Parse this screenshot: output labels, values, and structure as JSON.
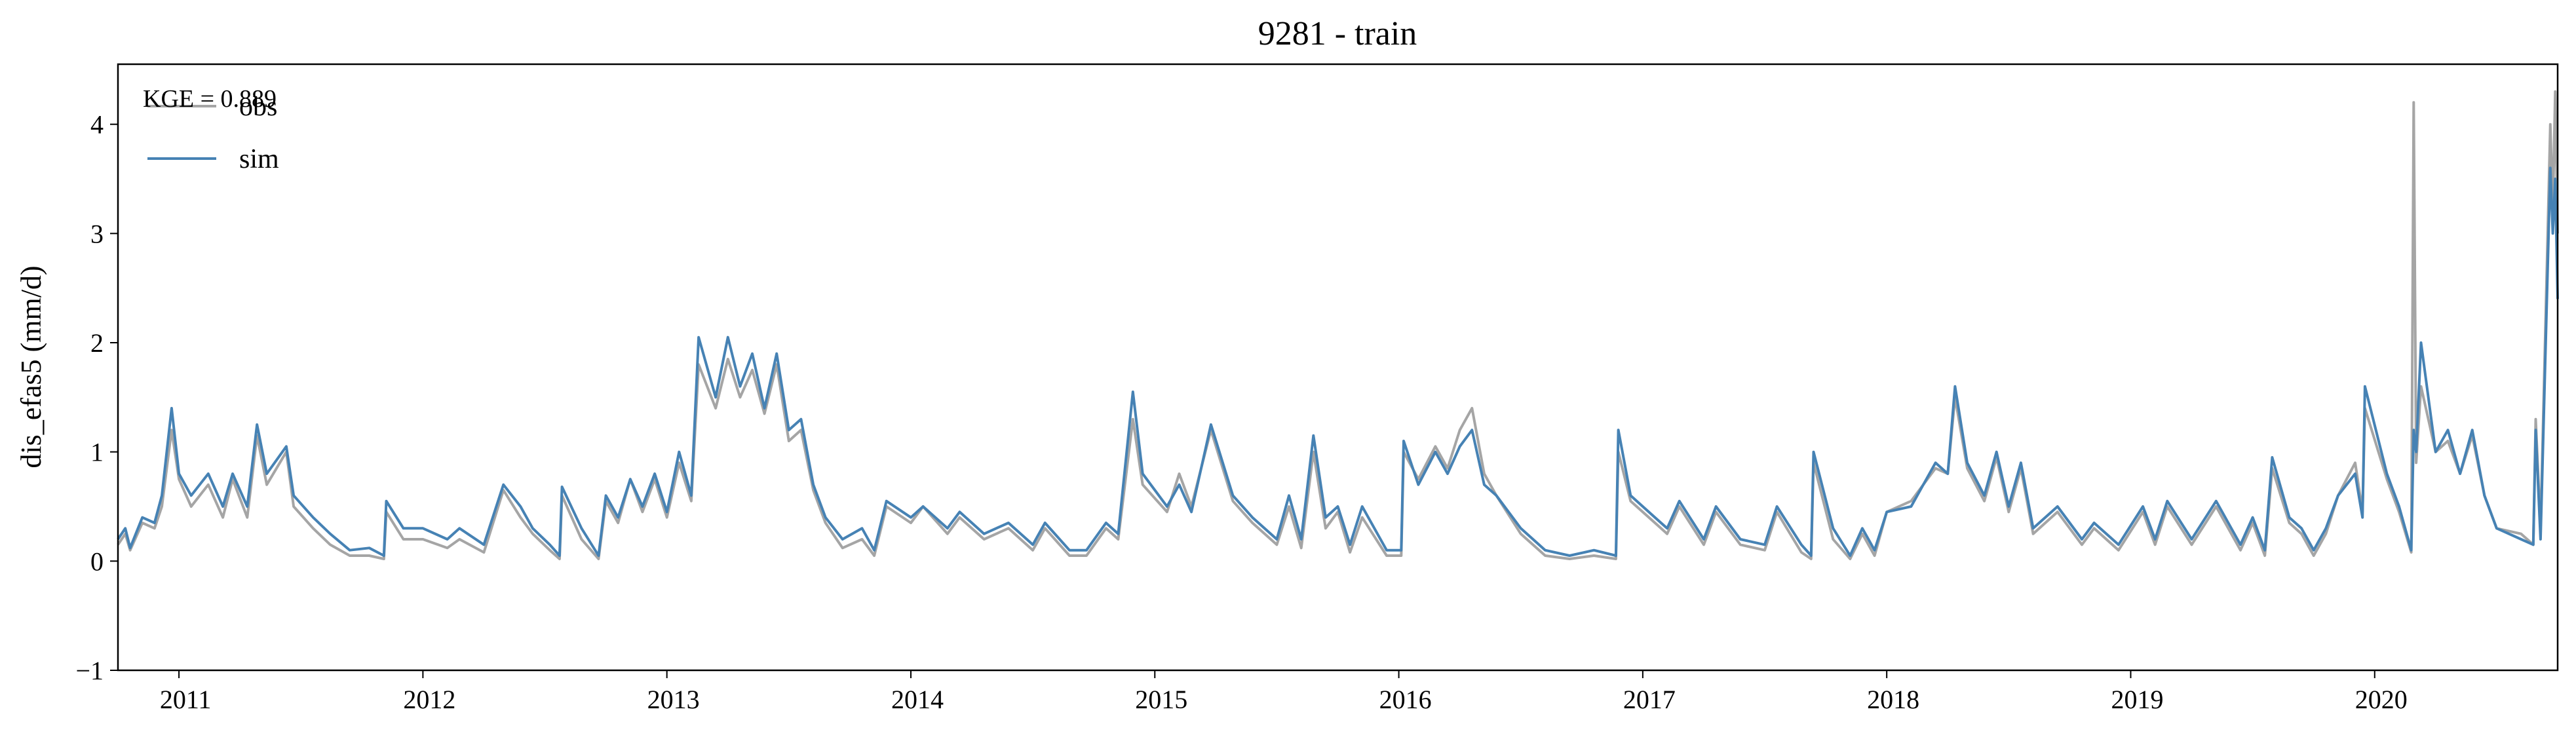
{
  "chart_data": {
    "type": "line",
    "title": "9281 - train",
    "y_label": "dis_efas5 (mm/d)",
    "annotation": "KGE = 0.889",
    "legend": "upper left",
    "xlim": [
      2010.75,
      2020.75
    ],
    "xticks": [
      2011,
      2012,
      2013,
      2014,
      2015,
      2016,
      2017,
      2018,
      2019,
      2020
    ],
    "ylim": [
      -1,
      4.55
    ],
    "yticks": [
      {
        "value": -1,
        "label": "−1"
      },
      0,
      1,
      2,
      3,
      4
    ],
    "x": [
      2010.75,
      2010.78,
      2010.8,
      2010.85,
      2010.9,
      2010.93,
      2010.97,
      2011.0,
      2011.05,
      2011.12,
      2011.18,
      2011.22,
      2011.28,
      2011.32,
      2011.36,
      2011.44,
      2011.47,
      2011.55,
      2011.62,
      2011.7,
      2011.78,
      2011.84,
      2011.85,
      2011.92,
      2012.0,
      2012.1,
      2012.15,
      2012.25,
      2012.33,
      2012.4,
      2012.45,
      2012.52,
      2012.56,
      2012.57,
      2012.65,
      2012.72,
      2012.75,
      2012.8,
      2012.85,
      2012.9,
      2012.95,
      2013.0,
      2013.05,
      2013.1,
      2013.13,
      2013.2,
      2013.25,
      2013.3,
      2013.35,
      2013.4,
      2013.45,
      2013.5,
      2013.55,
      2013.6,
      2013.65,
      2013.72,
      2013.8,
      2013.85,
      2013.9,
      2014.0,
      2014.05,
      2014.15,
      2014.2,
      2014.3,
      2014.4,
      2014.5,
      2014.55,
      2014.65,
      2014.72,
      2014.8,
      2014.85,
      2014.91,
      2014.95,
      2015.05,
      2015.1,
      2015.15,
      2015.23,
      2015.32,
      2015.4,
      2015.5,
      2015.55,
      2015.6,
      2015.65,
      2015.7,
      2015.75,
      2015.8,
      2015.85,
      2015.95,
      2016.01,
      2016.02,
      2016.08,
      2016.15,
      2016.2,
      2016.25,
      2016.3,
      2016.35,
      2016.4,
      2016.5,
      2016.6,
      2016.7,
      2016.8,
      2016.89,
      2016.9,
      2016.95,
      2017.05,
      2017.1,
      2017.15,
      2017.25,
      2017.3,
      2017.4,
      2017.5,
      2017.55,
      2017.65,
      2017.69,
      2017.7,
      2017.78,
      2017.85,
      2017.9,
      2017.95,
      2018.0,
      2018.1,
      2018.2,
      2018.25,
      2018.28,
      2018.33,
      2018.4,
      2018.45,
      2018.5,
      2018.55,
      2018.6,
      2018.7,
      2018.8,
      2018.85,
      2018.95,
      2019.05,
      2019.1,
      2019.15,
      2019.25,
      2019.35,
      2019.45,
      2019.5,
      2019.55,
      2019.58,
      2019.65,
      2019.7,
      2019.75,
      2019.8,
      2019.85,
      2019.92,
      2019.95,
      2019.96,
      2020.05,
      2020.1,
      2020.15,
      2020.16,
      2020.17,
      2020.19,
      2020.25,
      2020.3,
      2020.35,
      2020.4,
      2020.45,
      2020.5,
      2020.6,
      2020.65,
      2020.66,
      2020.68,
      2020.72,
      2020.73,
      2020.74,
      2020.75
    ],
    "series": [
      {
        "name": "obs",
        "color": "#a5a5a5",
        "values": [
          0.15,
          0.25,
          0.1,
          0.35,
          0.3,
          0.5,
          1.2,
          0.75,
          0.5,
          0.7,
          0.4,
          0.75,
          0.4,
          1.15,
          0.7,
          1.0,
          0.5,
          0.3,
          0.15,
          0.05,
          0.05,
          0.02,
          0.45,
          0.2,
          0.2,
          0.12,
          0.2,
          0.08,
          0.65,
          0.4,
          0.25,
          0.1,
          0.02,
          0.6,
          0.2,
          0.02,
          0.55,
          0.35,
          0.75,
          0.45,
          0.75,
          0.4,
          0.9,
          0.55,
          1.8,
          1.4,
          1.85,
          1.5,
          1.75,
          1.35,
          1.8,
          1.1,
          1.2,
          0.65,
          0.35,
          0.12,
          0.2,
          0.05,
          0.5,
          0.35,
          0.5,
          0.25,
          0.4,
          0.2,
          0.3,
          0.1,
          0.3,
          0.05,
          0.05,
          0.3,
          0.2,
          1.3,
          0.7,
          0.45,
          0.8,
          0.5,
          1.2,
          0.55,
          0.35,
          0.15,
          0.5,
          0.12,
          1.0,
          0.3,
          0.45,
          0.08,
          0.4,
          0.05,
          0.05,
          1.0,
          0.75,
          1.05,
          0.85,
          1.2,
          1.4,
          0.8,
          0.6,
          0.25,
          0.05,
          0.02,
          0.05,
          0.02,
          1.0,
          0.55,
          0.35,
          0.25,
          0.5,
          0.15,
          0.45,
          0.15,
          0.1,
          0.45,
          0.08,
          0.02,
          0.9,
          0.2,
          0.02,
          0.25,
          0.05,
          0.45,
          0.55,
          0.85,
          0.8,
          1.5,
          0.85,
          0.55,
          0.95,
          0.45,
          0.85,
          0.25,
          0.45,
          0.15,
          0.3,
          0.1,
          0.45,
          0.15,
          0.5,
          0.15,
          0.5,
          0.1,
          0.35,
          0.05,
          0.85,
          0.35,
          0.25,
          0.05,
          0.25,
          0.6,
          0.9,
          0.45,
          1.4,
          0.75,
          0.45,
          0.08,
          4.2,
          0.9,
          1.6,
          1.0,
          1.1,
          0.8,
          1.15,
          0.6,
          0.3,
          0.25,
          0.15,
          1.3,
          0.3,
          4.0,
          3.2,
          4.3,
          3.0
        ]
      },
      {
        "name": "sim",
        "color": "#4682b4",
        "values": [
          0.2,
          0.3,
          0.12,
          0.4,
          0.35,
          0.6,
          1.4,
          0.8,
          0.6,
          0.8,
          0.5,
          0.8,
          0.5,
          1.25,
          0.8,
          1.05,
          0.6,
          0.4,
          0.25,
          0.1,
          0.12,
          0.05,
          0.55,
          0.3,
          0.3,
          0.2,
          0.3,
          0.15,
          0.7,
          0.5,
          0.3,
          0.15,
          0.05,
          0.68,
          0.3,
          0.05,
          0.6,
          0.4,
          0.75,
          0.5,
          0.8,
          0.45,
          1.0,
          0.6,
          2.05,
          1.5,
          2.05,
          1.6,
          1.9,
          1.4,
          1.9,
          1.2,
          1.3,
          0.7,
          0.4,
          0.2,
          0.3,
          0.1,
          0.55,
          0.4,
          0.5,
          0.3,
          0.45,
          0.25,
          0.35,
          0.15,
          0.35,
          0.1,
          0.1,
          0.35,
          0.25,
          1.55,
          0.8,
          0.5,
          0.7,
          0.45,
          1.25,
          0.6,
          0.4,
          0.2,
          0.6,
          0.2,
          1.15,
          0.4,
          0.5,
          0.15,
          0.5,
          0.1,
          0.1,
          1.1,
          0.7,
          1.0,
          0.8,
          1.05,
          1.2,
          0.7,
          0.6,
          0.3,
          0.1,
          0.05,
          0.1,
          0.05,
          1.2,
          0.6,
          0.4,
          0.3,
          0.55,
          0.2,
          0.5,
          0.2,
          0.15,
          0.5,
          0.15,
          0.05,
          1.0,
          0.3,
          0.05,
          0.3,
          0.1,
          0.45,
          0.5,
          0.9,
          0.8,
          1.6,
          0.9,
          0.6,
          1.0,
          0.5,
          0.9,
          0.3,
          0.5,
          0.2,
          0.35,
          0.15,
          0.5,
          0.2,
          0.55,
          0.2,
          0.55,
          0.15,
          0.4,
          0.1,
          0.95,
          0.4,
          0.3,
          0.1,
          0.3,
          0.6,
          0.8,
          0.4,
          1.6,
          0.8,
          0.5,
          0.1,
          1.2,
          1.0,
          2.0,
          1.0,
          1.2,
          0.8,
          1.2,
          0.6,
          0.3,
          0.2,
          0.15,
          1.2,
          0.2,
          3.6,
          3.0,
          3.5,
          2.4
        ]
      }
    ]
  }
}
